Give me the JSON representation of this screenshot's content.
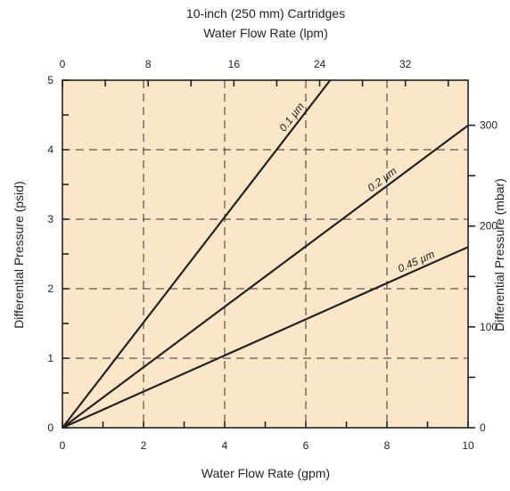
{
  "chart_data": {
    "type": "line",
    "title": "10-inch (250 mm) Cartridges",
    "x2label": "Water Flow Rate (lpm)",
    "xlabel": "Water Flow Rate (gpm)",
    "ylabel": "Differential Pressure (psid)",
    "y2label": "Differential Pressure (mbar)",
    "xlim": [
      0,
      10
    ],
    "ylim": [
      0,
      5
    ],
    "x2lim": [
      0,
      37.85
    ],
    "y2lim": [
      0,
      344.7
    ],
    "x_ticks": [
      "0",
      "2",
      "4",
      "6",
      "8",
      "10"
    ],
    "y_ticks": [
      "0",
      "1",
      "2",
      "3",
      "4",
      "5"
    ],
    "x2_ticks": [
      "0",
      "8",
      "16",
      "24",
      "32"
    ],
    "y2_ticks": [
      "0",
      "100",
      "200",
      "300"
    ],
    "grid": true,
    "background_color": "#fbe6c8",
    "line_color": "#222222",
    "series": [
      {
        "name": "0.1 µm",
        "x": [
          0,
          6.6
        ],
        "y": [
          0,
          5
        ]
      },
      {
        "name": "0.2 µm",
        "x": [
          0,
          10
        ],
        "y": [
          0,
          4.35
        ]
      },
      {
        "name": "0.45 µm",
        "x": [
          0,
          10
        ],
        "y": [
          0,
          2.6
        ]
      }
    ]
  }
}
